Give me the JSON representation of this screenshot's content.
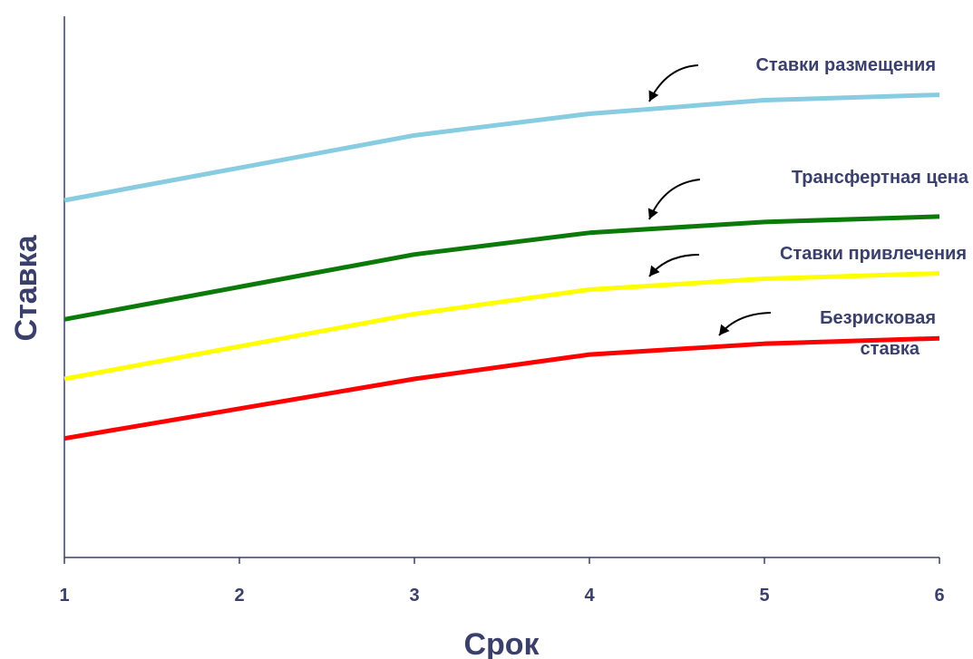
{
  "chart_data": {
    "type": "line",
    "x": [
      1,
      2,
      3,
      4,
      5,
      6
    ],
    "xlabel": "Срок",
    "ylabel": "Ставка",
    "xlim": [
      1,
      6
    ],
    "ylim": [
      0,
      10
    ],
    "grid": false,
    "series": [
      {
        "name": "Ставки размещения",
        "color": "#87CCE0",
        "values": [
          6.6,
          7.2,
          7.8,
          8.2,
          8.45,
          8.55
        ]
      },
      {
        "name": "Трансфертная цена",
        "color": "#0B7A0B",
        "values": [
          4.4,
          5.0,
          5.6,
          6.0,
          6.2,
          6.3
        ]
      },
      {
        "name": "Ставки привлечения",
        "color": "#FFFF00",
        "values": [
          3.3,
          3.9,
          4.5,
          4.95,
          5.15,
          5.25
        ]
      },
      {
        "name": "Безрисковая ставка",
        "color": "#FF0000",
        "values": [
          2.2,
          2.75,
          3.3,
          3.75,
          3.95,
          4.05
        ]
      }
    ],
    "annotations": [
      {
        "lines": [
          "Ставки размещения"
        ],
        "series": 0
      },
      {
        "lines": [
          "Трансфертная цена"
        ],
        "series": 1
      },
      {
        "lines": [
          "Ставки привлечения"
        ],
        "series": 2
      },
      {
        "lines": [
          "Безрисковая",
          "ставка"
        ],
        "series": 3
      }
    ]
  }
}
